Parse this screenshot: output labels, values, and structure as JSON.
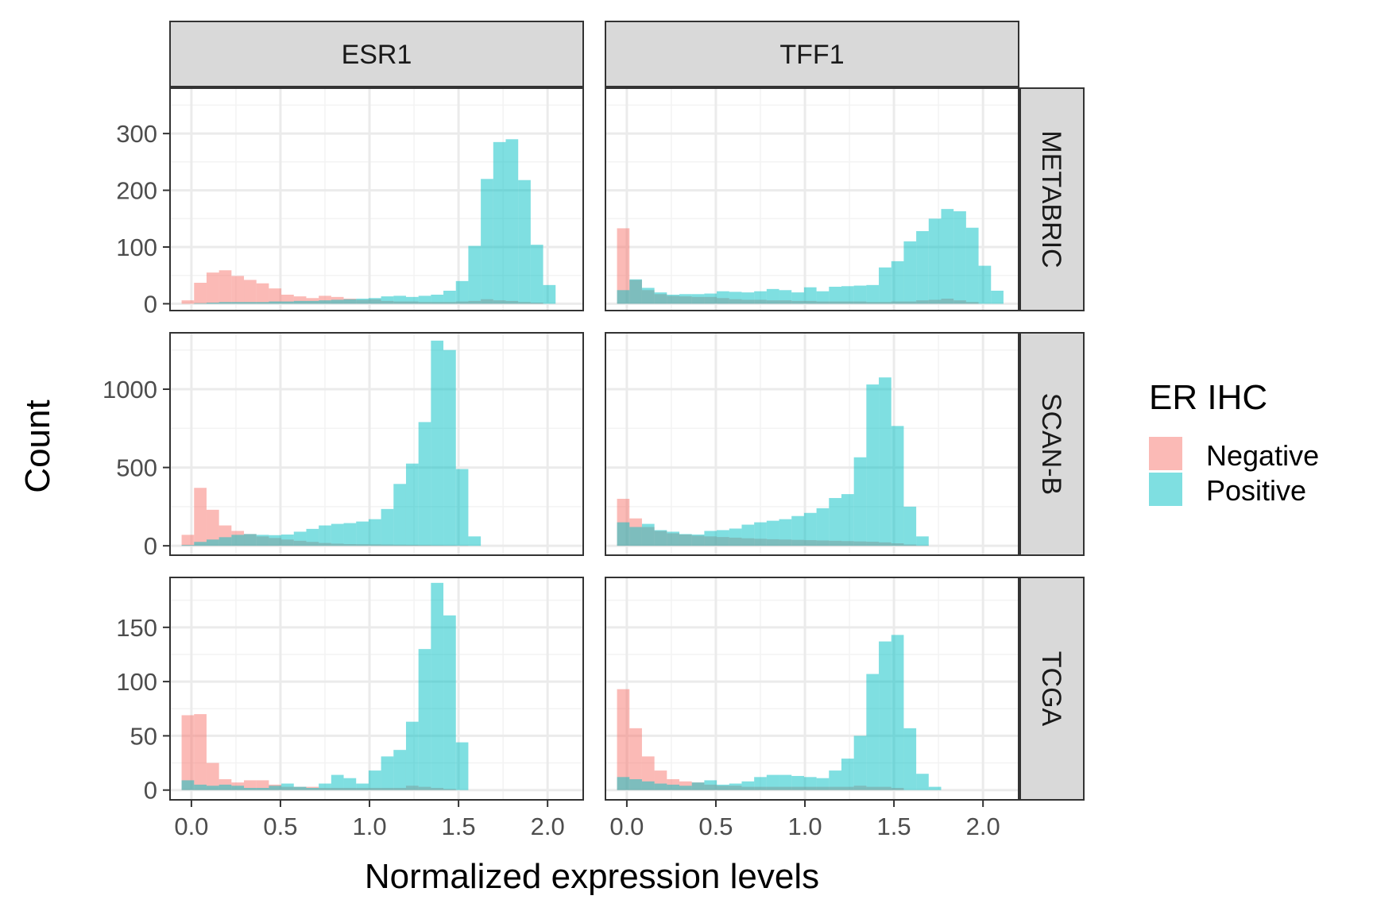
{
  "chart_data": {
    "type": "bar",
    "subtype": "faceted-histogram",
    "xlabel": "Normalized expression levels",
    "ylabel": "Count",
    "xlim": [
      -0.12,
      2.2
    ],
    "x_ticks": [
      0.0,
      0.5,
      1.0,
      1.5,
      2.0
    ],
    "x_tick_labels": [
      "0.0",
      "0.5",
      "1.0",
      "1.5",
      "2.0"
    ],
    "bin_width": 0.07,
    "grid": true,
    "legend": {
      "title": "ER IHC",
      "position": "right",
      "entries": [
        {
          "name": "Negative",
          "color": "#F8766D"
        },
        {
          "name": "Positive",
          "color": "#00BFC4"
        }
      ]
    },
    "bar_alpha": 0.5,
    "columns": [
      "ESR1",
      "TFF1"
    ],
    "rows": [
      {
        "name": "METABRIC",
        "ylim": [
          -12,
          380
        ],
        "y_ticks": [
          0,
          100,
          200,
          300
        ]
      },
      {
        "name": "SCAN-B",
        "ylim": [
          -60,
          1360
        ],
        "y_ticks": [
          0,
          500,
          1000
        ]
      },
      {
        "name": "TCGA",
        "ylim": [
          -9,
          196
        ],
        "y_ticks": [
          0,
          50,
          100,
          150
        ]
      }
    ],
    "panels": [
      {
        "column": "ESR1",
        "row": "METABRIC",
        "series": [
          {
            "name": "Negative",
            "x": [
              -0.02,
              0.05,
              0.12,
              0.19,
              0.26,
              0.33,
              0.4,
              0.47,
              0.54,
              0.61,
              0.68,
              0.75,
              0.82,
              0.89,
              0.96,
              1.03,
              1.1,
              1.17,
              1.24,
              1.31,
              1.38,
              1.45,
              1.52,
              1.59,
              1.66,
              1.73,
              1.8,
              1.87,
              1.94,
              2.01
            ],
            "y": [
              6,
              37,
              55,
              59,
              49,
              42,
              36,
              27,
              16,
              13,
              10,
              14,
              12,
              9,
              7,
              8,
              5,
              4,
              4,
              3,
              3,
              3,
              4,
              5,
              8,
              6,
              5,
              3,
              2,
              0
            ]
          },
          {
            "name": "Positive",
            "x": [
              -0.02,
              0.05,
              0.12,
              0.19,
              0.26,
              0.33,
              0.4,
              0.47,
              0.54,
              0.61,
              0.68,
              0.75,
              0.82,
              0.89,
              0.96,
              1.03,
              1.1,
              1.17,
              1.24,
              1.31,
              1.38,
              1.45,
              1.52,
              1.59,
              1.66,
              1.73,
              1.8,
              1.87,
              1.94,
              2.01
            ],
            "y": [
              0,
              1,
              2,
              3,
              3,
              3,
              3,
              4,
              4,
              5,
              5,
              6,
              7,
              8,
              9,
              10,
              13,
              14,
              12,
              14,
              16,
              23,
              40,
              102,
              220,
              285,
              290,
              218,
              104,
              33
            ]
          }
        ]
      },
      {
        "column": "TFF1",
        "row": "METABRIC",
        "series": [
          {
            "name": "Negative",
            "x": [
              -0.02,
              0.05,
              0.12,
              0.19,
              0.26,
              0.33,
              0.4,
              0.47,
              0.54,
              0.61,
              0.68,
              0.75,
              0.82,
              0.89,
              0.96,
              1.03,
              1.1,
              1.17,
              1.24,
              1.31,
              1.38,
              1.45,
              1.52,
              1.59,
              1.66,
              1.73,
              1.8,
              1.87,
              1.94,
              2.01,
              2.08
            ],
            "y": [
              133,
              42,
              24,
              17,
              14,
              13,
              12,
              12,
              10,
              8,
              7,
              7,
              6,
              6,
              5,
              5,
              4,
              4,
              4,
              4,
              3,
              3,
              4,
              4,
              6,
              7,
              9,
              6,
              3,
              0,
              0
            ]
          },
          {
            "name": "Positive",
            "x": [
              -0.02,
              0.05,
              0.12,
              0.19,
              0.26,
              0.33,
              0.4,
              0.47,
              0.54,
              0.61,
              0.68,
              0.75,
              0.82,
              0.89,
              0.96,
              1.03,
              1.1,
              1.17,
              1.24,
              1.31,
              1.38,
              1.45,
              1.52,
              1.59,
              1.66,
              1.73,
              1.8,
              1.87,
              1.94,
              2.01,
              2.08
            ],
            "y": [
              24,
              43,
              28,
              20,
              16,
              17,
              17,
              18,
              22,
              21,
              20,
              22,
              26,
              24,
              20,
              29,
              22,
              30,
              31,
              32,
              33,
              64,
              75,
              110,
              128,
              150,
              167,
              163,
              134,
              67,
              23
            ]
          }
        ]
      },
      {
        "column": "ESR1",
        "row": "SCAN-B",
        "series": [
          {
            "name": "Negative",
            "x": [
              -0.02,
              0.05,
              0.12,
              0.19,
              0.26,
              0.33,
              0.4,
              0.47,
              0.54,
              0.61,
              0.68,
              0.75,
              0.82,
              0.89,
              0.96,
              1.03,
              1.1,
              1.17,
              1.24,
              1.31,
              1.38,
              1.45,
              1.52,
              1.59
            ],
            "y": [
              70,
              370,
              230,
              130,
              95,
              75,
              60,
              50,
              40,
              32,
              25,
              18,
              14,
              11,
              10,
              9,
              8,
              7,
              6,
              5,
              4,
              3,
              2,
              0
            ]
          },
          {
            "name": "Positive",
            "x": [
              -0.02,
              0.05,
              0.12,
              0.19,
              0.26,
              0.33,
              0.4,
              0.47,
              0.54,
              0.61,
              0.68,
              0.75,
              0.82,
              0.89,
              0.96,
              1.03,
              1.1,
              1.17,
              1.24,
              1.31,
              1.38,
              1.45,
              1.52,
              1.59
            ],
            "y": [
              5,
              25,
              40,
              55,
              70,
              75,
              70,
              68,
              72,
              90,
              108,
              130,
              140,
              145,
              155,
              170,
              235,
              395,
              525,
              790,
              1310,
              1250,
              490,
              60
            ]
          }
        ]
      },
      {
        "column": "TFF1",
        "row": "SCAN-B",
        "series": [
          {
            "name": "Negative",
            "x": [
              -0.02,
              0.05,
              0.12,
              0.19,
              0.26,
              0.33,
              0.4,
              0.47,
              0.54,
              0.61,
              0.68,
              0.75,
              0.82,
              0.89,
              0.96,
              1.03,
              1.1,
              1.17,
              1.24,
              1.31,
              1.38,
              1.45,
              1.52,
              1.59,
              1.66
            ],
            "y": [
              300,
              175,
              120,
              95,
              80,
              72,
              65,
              60,
              56,
              52,
              48,
              45,
              42,
              40,
              38,
              36,
              34,
              32,
              30,
              28,
              26,
              22,
              16,
              8,
              2
            ]
          },
          {
            "name": "Positive",
            "x": [
              -0.02,
              0.05,
              0.12,
              0.19,
              0.26,
              0.33,
              0.4,
              0.47,
              0.54,
              0.61,
              0.68,
              0.75,
              0.82,
              0.89,
              0.96,
              1.03,
              1.1,
              1.17,
              1.24,
              1.31,
              1.38,
              1.45,
              1.52,
              1.59,
              1.66
            ],
            "y": [
              150,
              120,
              140,
              100,
              90,
              75,
              72,
              95,
              100,
              110,
              135,
              150,
              160,
              170,
              190,
              210,
              240,
              305,
              330,
              565,
              1030,
              1075,
              765,
              250,
              60
            ]
          }
        ]
      },
      {
        "column": "ESR1",
        "row": "TCGA",
        "series": [
          {
            "name": "Negative",
            "x": [
              -0.02,
              0.05,
              0.12,
              0.19,
              0.26,
              0.33,
              0.4,
              0.47,
              0.54,
              0.61,
              0.68,
              0.75,
              0.82,
              0.89,
              0.96,
              1.03,
              1.1,
              1.17,
              1.24,
              1.31,
              1.38,
              1.45,
              1.52
            ],
            "y": [
              69,
              70,
              25,
              10,
              7,
              9,
              9,
              5,
              3,
              3,
              3,
              2,
              2,
              2,
              2,
              2,
              2,
              2,
              4,
              3,
              2,
              1,
              0
            ]
          },
          {
            "name": "Positive",
            "x": [
              -0.02,
              0.05,
              0.12,
              0.19,
              0.26,
              0.33,
              0.4,
              0.47,
              0.54,
              0.61,
              0.68,
              0.75,
              0.82,
              0.89,
              0.96,
              1.03,
              1.1,
              1.17,
              1.24,
              1.31,
              1.38,
              1.45,
              1.52
            ],
            "y": [
              9,
              5,
              4,
              5,
              4,
              2,
              2,
              4,
              6,
              3,
              2,
              6,
              14,
              11,
              6,
              18,
              31,
              37,
              63,
              130,
              191,
              161,
              44
            ]
          }
        ]
      },
      {
        "column": "TFF1",
        "row": "TCGA",
        "series": [
          {
            "name": "Negative",
            "x": [
              -0.02,
              0.05,
              0.12,
              0.19,
              0.26,
              0.33,
              0.4,
              0.47,
              0.54,
              0.61,
              0.68,
              0.75,
              0.82,
              0.89,
              0.96,
              1.03,
              1.1,
              1.17,
              1.24,
              1.31,
              1.38,
              1.45,
              1.52,
              1.59
            ],
            "y": [
              93,
              57,
              31,
              18,
              10,
              8,
              7,
              5,
              4,
              4,
              3,
              3,
              3,
              3,
              3,
              3,
              3,
              3,
              3,
              4,
              3,
              3,
              2,
              0
            ]
          },
          {
            "name": "Positive",
            "x": [
              -0.02,
              0.05,
              0.12,
              0.19,
              0.26,
              0.33,
              0.4,
              0.47,
              0.54,
              0.61,
              0.68,
              0.75,
              0.82,
              0.89,
              0.96,
              1.03,
              1.1,
              1.17,
              1.24,
              1.31,
              1.38,
              1.45,
              1.52,
              1.59,
              1.66,
              1.73
            ],
            "y": [
              12,
              10,
              8,
              6,
              5,
              4,
              7,
              9,
              5,
              6,
              8,
              12,
              14,
              14,
              13,
              12,
              11,
              18,
              29,
              50,
              107,
              137,
              143,
              57,
              15,
              3
            ]
          }
        ]
      }
    ]
  }
}
